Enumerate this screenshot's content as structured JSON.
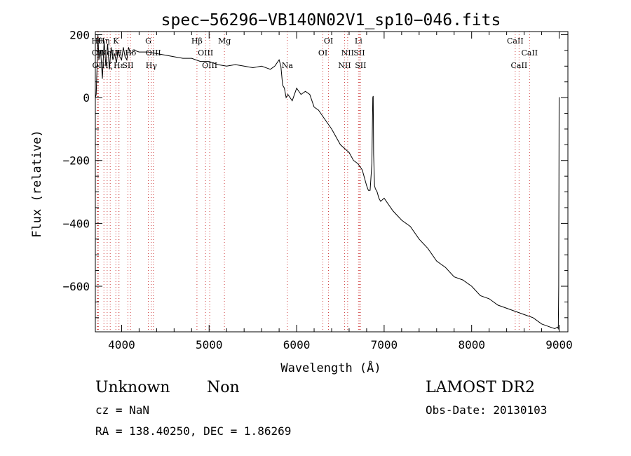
{
  "chart_data": {
    "type": "line",
    "title": "spec−56296−VB140N02V1_sp10−046.fits",
    "xlabel": "Wavelength (Å)",
    "ylabel": "Flux (relative)",
    "xlim": [
      3700,
      9100
    ],
    "ylim": [
      -745,
      210
    ],
    "xticks": [
      4000,
      5000,
      6000,
      7000,
      8000,
      9000
    ],
    "yticks": [
      200,
      0,
      -200,
      -400,
      -600
    ],
    "ytick_labels": [
      "200",
      "0",
      "−200",
      "−400",
      "−600"
    ],
    "grid": false,
    "series": [
      {
        "x": [
          3700,
          3710,
          3720,
          3730,
          3740,
          3760,
          3780,
          3800,
          3820,
          3840,
          3860,
          3880,
          3900,
          3920,
          3940,
          3960,
          3980,
          4000,
          4020,
          4040,
          4060,
          4080,
          4100,
          4150,
          4200,
          4300,
          4400,
          4500,
          4600,
          4700,
          4800,
          4900,
          5000,
          5100,
          5200,
          5300,
          5400,
          5500,
          5600,
          5700,
          5750,
          5800,
          5820,
          5840,
          5860,
          5880,
          5900,
          5950,
          6000,
          6050,
          6100,
          6150,
          6200,
          6250,
          6300,
          6400,
          6500,
          6600,
          6650,
          6700,
          6750,
          6800,
          6820,
          6840,
          6860,
          6870,
          6875,
          6880,
          6890,
          6900,
          6920,
          6940,
          6960,
          7000,
          7100,
          7200,
          7300,
          7400,
          7500,
          7600,
          7700,
          7800,
          7900,
          8000,
          8100,
          8200,
          8300,
          8400,
          8500,
          8600,
          8700,
          8800,
          8900,
          8950,
          8980,
          8990,
          8995,
          9000,
          9005
        ],
        "y": [
          0,
          10,
          100,
          200,
          120,
          150,
          60,
          180,
          100,
          170,
          90,
          160,
          120,
          140,
          110,
          150,
          130,
          120,
          160,
          130,
          120,
          160,
          140,
          150,
          145,
          145,
          140,
          135,
          130,
          125,
          125,
          115,
          115,
          105,
          100,
          105,
          100,
          95,
          100,
          90,
          100,
          120,
          100,
          40,
          30,
          0,
          10,
          -10,
          30,
          10,
          20,
          10,
          -30,
          -40,
          -60,
          -100,
          -150,
          -175,
          -200,
          -210,
          -230,
          -280,
          -295,
          -295,
          -210,
          0,
          5,
          -180,
          -280,
          -290,
          -300,
          -320,
          -330,
          -320,
          -360,
          -390,
          -410,
          -450,
          -480,
          -520,
          -540,
          -570,
          -580,
          -600,
          -630,
          -640,
          -660,
          -670,
          -680,
          -690,
          -700,
          -720,
          -730,
          -735,
          -730,
          -735,
          -600,
          0,
          0
        ]
      }
    ],
    "line_markers": [
      {
        "x": 3720,
        "label": "Hθ",
        "row": 0
      },
      {
        "x": 3730,
        "label": "OII",
        "row": 1
      },
      {
        "x": 3735,
        "label": "OII",
        "row": 2
      },
      {
        "x": 3798,
        "label": "Hη",
        "row": 0
      },
      {
        "x": 3835,
        "label": "Hζ",
        "row": 2
      },
      {
        "x": 3870,
        "label": "NeIII",
        "row": 1
      },
      {
        "x": 3934,
        "label": "K",
        "row": 0
      },
      {
        "x": 3969,
        "label": "H",
        "row": 1
      },
      {
        "x": 3970,
        "label": "Hε",
        "row": 2
      },
      {
        "x": 4072,
        "label": "SII",
        "row": 2
      },
      {
        "x": 4102,
        "label": "Hδ",
        "row": 1
      },
      {
        "x": 4305,
        "label": "G",
        "row": 0
      },
      {
        "x": 4340,
        "label": "Hγ",
        "row": 2
      },
      {
        "x": 4363,
        "label": "OIII",
        "row": 1
      },
      {
        "x": 4861,
        "label": "Hβ",
        "row": 0
      },
      {
        "x": 4959,
        "label": "OIII",
        "row": 1
      },
      {
        "x": 5007,
        "label": "OIII",
        "row": 2
      },
      {
        "x": 5175,
        "label": "Mg",
        "row": 0
      },
      {
        "x": 5894,
        "label": "Na",
        "row": 2
      },
      {
        "x": 6300,
        "label": "OI",
        "row": 1
      },
      {
        "x": 6364,
        "label": "OI",
        "row": 0
      },
      {
        "x": 6548,
        "label": "NII",
        "row": 2
      },
      {
        "x": 6583,
        "label": "NII",
        "row": 1
      },
      {
        "x": 6707,
        "label": "Li",
        "row": 0
      },
      {
        "x": 6716,
        "label": "SII",
        "row": 1
      },
      {
        "x": 6731,
        "label": "SII",
        "row": 2
      },
      {
        "x": 8498,
        "label": "CaII",
        "row": 0
      },
      {
        "x": 8542,
        "label": "CaII",
        "row": 2
      },
      {
        "x": 8662,
        "label": "CaII",
        "row": 1
      }
    ]
  },
  "info": {
    "class_label": "Unknown",
    "subclass_label": "Non",
    "survey": "LAMOST DR2",
    "cz": "cz = NaN",
    "obs_date": "Obs-Date: 20130103",
    "coords": "RA = 138.40250, DEC =   1.86269"
  }
}
